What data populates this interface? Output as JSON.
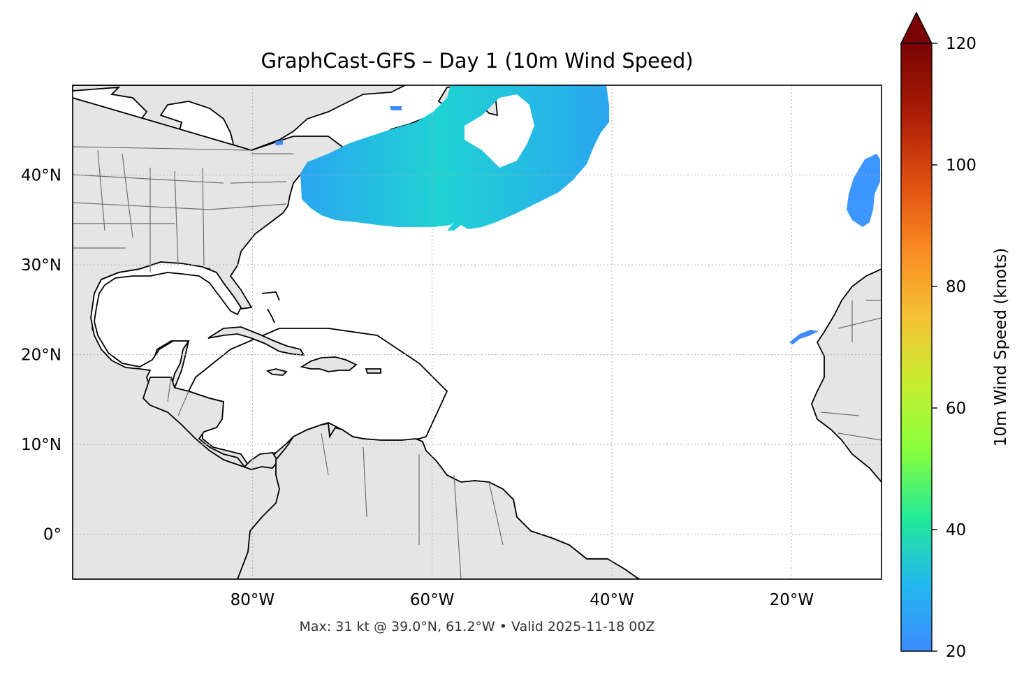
{
  "title": "GraphCast-GFS – Day 1 (10m Wind Speed)",
  "subtitle": "Max: 31 kt @ 39.0°N, 61.2°W • Valid 2025-11-18 00Z",
  "map": {
    "lon_range": [
      -100,
      -10
    ],
    "lat_range": [
      -5,
      50
    ],
    "x_ticks": [
      {
        "lon": -80,
        "label": "80°W"
      },
      {
        "lon": -60,
        "label": "60°W"
      },
      {
        "lon": -40,
        "label": "40°W"
      },
      {
        "lon": -20,
        "label": "20°W"
      }
    ],
    "y_ticks": [
      {
        "lat": 0,
        "label": "0°"
      },
      {
        "lat": 10,
        "label": "10°N"
      },
      {
        "lat": 20,
        "label": "20°N"
      },
      {
        "lat": 30,
        "label": "30°N"
      },
      {
        "lat": 40,
        "label": "40°N"
      }
    ],
    "gridlines": true,
    "land_color": "#e5e5e5",
    "coast_color": "#000000",
    "border_color": "#6e6e6e"
  },
  "colorbar": {
    "label": "10m Wind Speed (knots)",
    "range": [
      20,
      120
    ],
    "extend": "max",
    "ticks": [
      {
        "value": 20,
        "label": "20"
      },
      {
        "value": 40,
        "label": "40"
      },
      {
        "value": 60,
        "label": "60"
      },
      {
        "value": 80,
        "label": "80"
      },
      {
        "value": 100,
        "label": "100"
      },
      {
        "value": 120,
        "label": "120"
      }
    ],
    "colormap": [
      "#3d8bff",
      "#22c4e4",
      "#22ea97",
      "#88ff3c",
      "#d5e132",
      "#fbb138",
      "#f97220",
      "#d33e0d",
      "#a01406",
      "#7a0403"
    ]
  },
  "wind_areas": [
    {
      "region": "Northwest Atlantic off New England / Nova Scotia",
      "approx_speed_kt": 28
    },
    {
      "region": "Central North Atlantic near 40°N 15°W",
      "approx_speed_kt": 22
    },
    {
      "region": "Near Canary Islands",
      "approx_speed_kt": 21
    }
  ],
  "max_wind": {
    "speed_kt": 31,
    "lat": 39.0,
    "lon": -61.2
  }
}
